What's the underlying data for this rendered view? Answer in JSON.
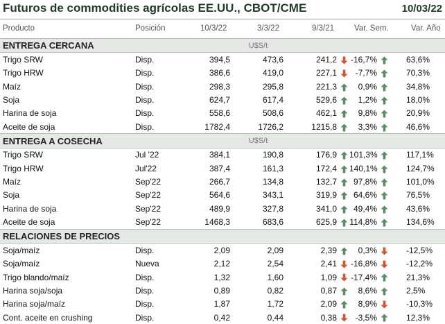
{
  "header": {
    "title": "Futuros de commodities agrícolas EE.UU., CBOT/CME",
    "date": "10/03/22"
  },
  "columns": [
    "Producto",
    "Posición",
    "10/3/22",
    "3/3/22",
    "9/3/21",
    "Var. Sem.",
    "Var. Año"
  ],
  "colors": {
    "up": "#5a8c62",
    "down": "#d8532b",
    "section_bg": "#e6e8e6"
  },
  "sections": [
    {
      "title": "ENTREGA CERCANA",
      "unit": "U$S/t",
      "rows": [
        {
          "product": "Trigo SRW",
          "position": "Disp.",
          "v1": "394,5",
          "v2": "473,6",
          "v3": "241,2",
          "week": "-16,7%",
          "week_dir": "down",
          "year": "63,6%",
          "year_dir": "up"
        },
        {
          "product": "Trigo HRW",
          "position": "Disp.",
          "v1": "386,6",
          "v2": "419,0",
          "v3": "227,1",
          "week": "-7,7%",
          "week_dir": "down",
          "year": "70,3%",
          "year_dir": "up"
        },
        {
          "product": "Maíz",
          "position": "Disp.",
          "v1": "298,3",
          "v2": "295,8",
          "v3": "221,3",
          "week": "0,9%",
          "week_dir": "up",
          "year": "34,8%",
          "year_dir": "up"
        },
        {
          "product": "Soja",
          "position": "Disp.",
          "v1": "624,7",
          "v2": "617,4",
          "v3": "529,6",
          "week": "1,2%",
          "week_dir": "up",
          "year": "18,0%",
          "year_dir": "up"
        },
        {
          "product": "Harina de soja",
          "position": "Disp.",
          "v1": "558,6",
          "v2": "508,6",
          "v3": "462,1",
          "week": "9,8%",
          "week_dir": "up",
          "year": "20,9%",
          "year_dir": "up"
        },
        {
          "product": "Aceite de soja",
          "position": "Disp.",
          "v1": "1782,4",
          "v2": "1726,2",
          "v3": "1215,8",
          "week": "3,3%",
          "week_dir": "up",
          "year": "46,6%",
          "year_dir": "up"
        }
      ]
    },
    {
      "title": "ENTREGA A COSECHA",
      "unit": "U$S/t",
      "rows": [
        {
          "product": "Trigo SRW",
          "position": "Jul '22",
          "v1": "384,1",
          "v2": "190,8",
          "v3": "176,9",
          "week": "101,3%",
          "week_dir": "up",
          "year": "117,1%",
          "year_dir": "up"
        },
        {
          "product": "Trigo HRW",
          "position": "Jul'22",
          "v1": "387,4",
          "v2": "161,3",
          "v3": "172,4",
          "week": "140,1%",
          "week_dir": "up",
          "year": "124,7%",
          "year_dir": "up"
        },
        {
          "product": "Maíz",
          "position": "Sep'22",
          "v1": "266,7",
          "v2": "134,8",
          "v3": "132,7",
          "week": "97,8%",
          "week_dir": "up",
          "year": "101,0%",
          "year_dir": "up"
        },
        {
          "product": "Soja",
          "position": "Sep'22",
          "v1": "564,6",
          "v2": "343,1",
          "v3": "319,9",
          "week": "64,6%",
          "week_dir": "up",
          "year": "76,5%",
          "year_dir": "up"
        },
        {
          "product": "Harina de soja",
          "position": "Sep'22",
          "v1": "489,9",
          "v2": "327,8",
          "v3": "341,0",
          "week": "49,4%",
          "week_dir": "up",
          "year": "43,6%",
          "year_dir": "up"
        },
        {
          "product": "Aceite de soja",
          "position": "Sep'22",
          "v1": "1468,3",
          "v2": "683,6",
          "v3": "625,9",
          "week": "114,8%",
          "week_dir": "up",
          "year": "134,6%",
          "year_dir": "up"
        }
      ]
    },
    {
      "title": "RELACIONES DE PRECIOS",
      "unit": "",
      "rows": [
        {
          "product": "Soja/maíz",
          "position": "Disp.",
          "v1": "2,09",
          "v2": "2,09",
          "v3": "2,39",
          "week": "0,3%",
          "week_dir": "up",
          "year": "-12,5%",
          "year_dir": "down"
        },
        {
          "product": "Soja/maíz",
          "position": "Nueva",
          "v1": "2,12",
          "v2": "2,54",
          "v3": "2,41",
          "week": "-16,8%",
          "week_dir": "down",
          "year": "-12,2%",
          "year_dir": "down"
        },
        {
          "product": "Trigo blando/maíz",
          "position": "Disp.",
          "v1": "1,32",
          "v2": "1,60",
          "v3": "1,09",
          "week": "-17,4%",
          "week_dir": "down",
          "year": "21,3%",
          "year_dir": "up"
        },
        {
          "product": "Harina soja/soja",
          "position": "Disp.",
          "v1": "0,89",
          "v2": "0,82",
          "v3": "0,87",
          "week": "8,6%",
          "week_dir": "up",
          "year": "2,5%",
          "year_dir": "up"
        },
        {
          "product": "Harina soja/maíz",
          "position": "Disp.",
          "v1": "1,87",
          "v2": "1,72",
          "v3": "2,09",
          "week": "8,9%",
          "week_dir": "up",
          "year": "-10,3%",
          "year_dir": "down"
        },
        {
          "product": "Cont. aceite en crushing",
          "position": "Disp.",
          "v1": "0,42",
          "v2": "0,44",
          "v3": "0,38",
          "week": "-3,5%",
          "week_dir": "down",
          "year": "12,3%",
          "year_dir": "up"
        }
      ]
    }
  ]
}
